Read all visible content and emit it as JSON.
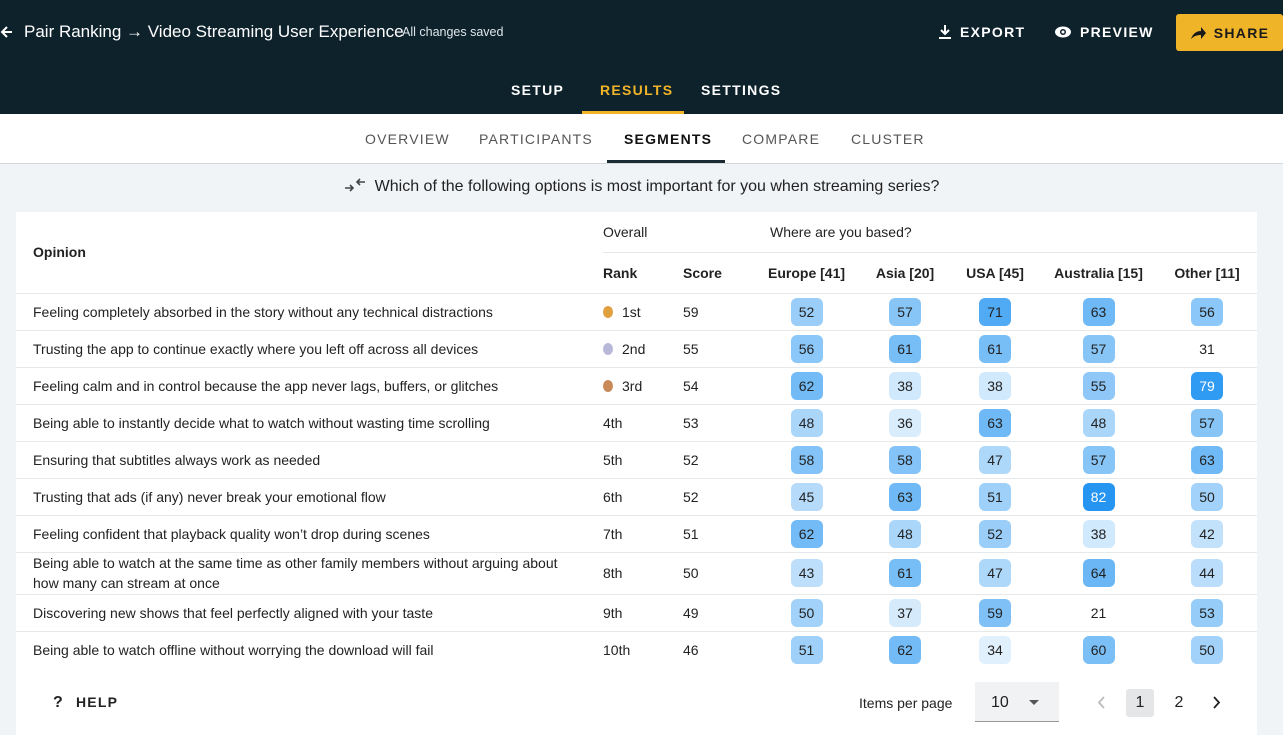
{
  "header": {
    "title": "Pair Ranking → Video Streaming User Experience",
    "status": "All changes saved",
    "actions": [
      "EXPORT",
      "PREVIEW",
      "SHARE"
    ]
  },
  "tabs": [
    "SETUP",
    "RESULTS",
    "SETTINGS"
  ],
  "subtabs": [
    "OVERVIEW",
    "PARTICIPANTS",
    "SEGMENTS",
    "COMPARE",
    "CLUSTER"
  ],
  "question": "Which of the following options is most important for you when streaming series?",
  "table": {
    "group_headers": [
      "Overall",
      "Where are you based?"
    ],
    "columns": [
      "Opinion",
      "Rank",
      "Score",
      "Europe [41]",
      "Asia [20]",
      "USA [45]",
      "Australia [15]",
      "Other [11]"
    ],
    "rows": [
      [
        "Feeling completely absorbed in the story without any technical distractions",
        "1st",
        59,
        52,
        57,
        71,
        63,
        56
      ],
      [
        "Trusting the app to continue exactly where you left off across all devices",
        "2nd",
        55,
        56,
        61,
        61,
        57,
        31
      ],
      [
        "Feeling calm and in control because the app never lags, buffers, or glitches",
        "3rd",
        54,
        62,
        38,
        38,
        55,
        79
      ],
      [
        "Being able to instantly decide what to watch without wasting time scrolling",
        "4th",
        53,
        48,
        36,
        63,
        48,
        57
      ],
      [
        "Ensuring that subtitles always work as needed",
        "5th",
        52,
        58,
        58,
        47,
        57,
        63
      ],
      [
        "Trusting that ads (if any) never break your emotional flow",
        "6th",
        52,
        45,
        63,
        51,
        82,
        50
      ],
      [
        "Feeling confident that playback quality won’t drop during scenes",
        "7th",
        51,
        62,
        48,
        52,
        38,
        42
      ],
      [
        "Being able to watch at the same time as other family members without arguing about how many can stream at once",
        "8th",
        50,
        43,
        61,
        47,
        64,
        44
      ],
      [
        "Discovering new shows that feel perfectly aligned with your taste",
        "9th",
        49,
        50,
        37,
        59,
        21,
        53
      ],
      [
        "Being able to watch offline without worrying the download will fail",
        "10th",
        46,
        51,
        62,
        34,
        60,
        50
      ]
    ]
  },
  "footer": {
    "help": "HELP",
    "items_per_page_label": "Items per page",
    "items_per_page": 10,
    "pages": [
      1,
      2
    ]
  }
}
